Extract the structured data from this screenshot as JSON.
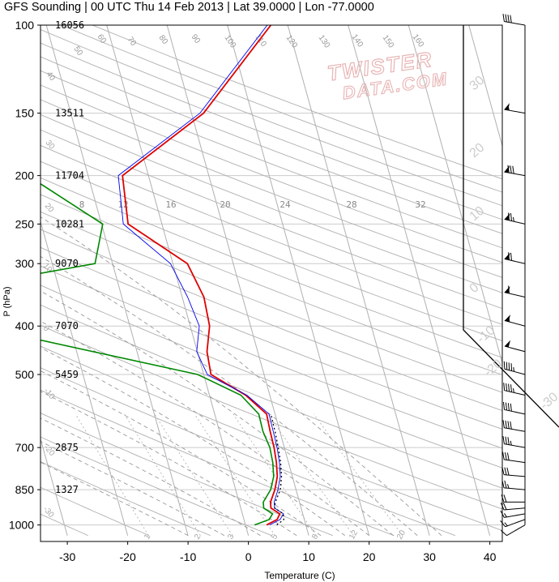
{
  "chart_data": {
    "type": "line",
    "title": "GFS Sounding | 00 UTC Thu 14 Feb 2013 | Lat 39.0000 | Lon -77.0000",
    "xlabel": "Temperature (C)",
    "ylabel": "P (hPa)",
    "skew": true,
    "xlim": [
      -34,
      46
    ],
    "ylim": [
      1050,
      100
    ],
    "x_ticks": [
      -30,
      -20,
      -10,
      0,
      10,
      20,
      30,
      40
    ],
    "y_ticks": [
      100,
      150,
      200,
      250,
      300,
      400,
      500,
      700,
      850,
      1000
    ],
    "heights_m": [
      {
        "p": 100,
        "label": "16056"
      },
      {
        "p": 150,
        "label": "13511"
      },
      {
        "p": 200,
        "label": "11704"
      },
      {
        "p": 250,
        "label": "10281"
      },
      {
        "p": 300,
        "label": "9070"
      },
      {
        "p": 400,
        "label": "7070"
      },
      {
        "p": 500,
        "label": "5459"
      },
      {
        "p": 700,
        "label": "2875"
      },
      {
        "p": 850,
        "label": "1327"
      }
    ],
    "isotherm_labels": [
      "40",
      "50",
      "60",
      "70",
      "80",
      "90",
      "100",
      "110",
      "120",
      "130",
      "140",
      "150",
      "160"
    ],
    "dry_adiabat_labels": [
      "40",
      "30",
      "20",
      "10",
      "0",
      "-10",
      "-20",
      "-30"
    ],
    "mixing_ratio_labels": [
      "1",
      "2",
      "3",
      "5",
      "8",
      "12",
      "20"
    ],
    "wetbulb_labels": [
      "8",
      "12",
      "16",
      "20",
      "24",
      "28",
      "32"
    ],
    "hodo_labels": [
      "-30",
      "-20",
      "-10",
      "0",
      "10",
      "20",
      "30"
    ],
    "series": [
      {
        "role": "temperature",
        "color": "#dd0000",
        "points": [
          [
            1000,
            3.5
          ],
          [
            975,
            5.5
          ],
          [
            950,
            6.2
          ],
          [
            925,
            5.0
          ],
          [
            900,
            5.2
          ],
          [
            850,
            6.5
          ],
          [
            800,
            7.5
          ],
          [
            750,
            8.0
          ],
          [
            700,
            8.3
          ],
          [
            650,
            8.4
          ],
          [
            600,
            8.6
          ],
          [
            550,
            6.0
          ],
          [
            500,
            1.2
          ],
          [
            450,
            1.6
          ],
          [
            400,
            3.2
          ],
          [
            350,
            3.6
          ],
          [
            300,
            2.4
          ],
          [
            250,
            -5.6
          ],
          [
            200,
            -4.3
          ],
          [
            150,
            12.0
          ],
          [
            100,
            27.2
          ]
        ]
      },
      {
        "role": "virtual-temperature",
        "color": "#0000ee",
        "points": [
          [
            1000,
            4.0
          ],
          [
            975,
            6.0
          ],
          [
            950,
            6.8
          ],
          [
            925,
            5.6
          ],
          [
            900,
            5.8
          ],
          [
            850,
            7.0
          ],
          [
            800,
            8.0
          ],
          [
            750,
            8.5
          ],
          [
            700,
            8.8
          ],
          [
            650,
            8.9
          ],
          [
            600,
            9.0
          ],
          [
            550,
            6.2
          ],
          [
            500,
            0.6
          ],
          [
            450,
            -0.1
          ],
          [
            400,
            1.5
          ],
          [
            350,
            0.9
          ],
          [
            300,
            -0.4
          ],
          [
            250,
            -6.4
          ],
          [
            200,
            -5.0
          ],
          [
            150,
            11.4
          ],
          [
            100,
            26.6
          ]
        ]
      },
      {
        "role": "dewpoint",
        "color": "#008800",
        "points": [
          [
            1000,
            1.5
          ],
          [
            975,
            4.2
          ],
          [
            950,
            5.0
          ],
          [
            925,
            3.8
          ],
          [
            900,
            4.0
          ],
          [
            850,
            5.8
          ],
          [
            800,
            6.9
          ],
          [
            750,
            7.4
          ],
          [
            700,
            7.6
          ],
          [
            650,
            7.2
          ],
          [
            600,
            7.3
          ],
          [
            550,
            5.2
          ],
          [
            500,
            -1.0
          ],
          [
            400,
            -35.5
          ],
          [
            350,
            -45.5
          ],
          [
            300,
            -12.9
          ],
          [
            250,
            -9.8
          ],
          [
            200,
            -20.0
          ],
          [
            150,
            -15.3
          ],
          [
            100,
            -15.0
          ]
        ]
      },
      {
        "role": "parcel",
        "color": "#000000",
        "points": [
          [
            1000,
            5.2
          ],
          [
            975,
            6.6
          ],
          [
            950,
            6.8
          ],
          [
            925,
            5.6
          ],
          [
            900,
            6.0
          ],
          [
            850,
            7.4
          ],
          [
            800,
            8.2
          ],
          [
            750,
            8.7
          ],
          [
            700,
            9.0
          ],
          [
            650,
            9.2
          ],
          [
            600,
            9.3
          ]
        ]
      }
    ],
    "wind_barbs": [
      {
        "p": 1000,
        "dir": 240,
        "speed": 10
      },
      {
        "p": 975,
        "dir": 250,
        "speed": 15
      },
      {
        "p": 950,
        "dir": 260,
        "speed": 15
      },
      {
        "p": 925,
        "dir": 265,
        "speed": 20
      },
      {
        "p": 900,
        "dir": 270,
        "speed": 20
      },
      {
        "p": 850,
        "dir": 275,
        "speed": 25
      },
      {
        "p": 800,
        "dir": 275,
        "speed": 30
      },
      {
        "p": 750,
        "dir": 278,
        "speed": 30
      },
      {
        "p": 700,
        "dir": 280,
        "speed": 35
      },
      {
        "p": 650,
        "dir": 280,
        "speed": 40
      },
      {
        "p": 600,
        "dir": 282,
        "speed": 40
      },
      {
        "p": 550,
        "dir": 283,
        "speed": 45
      },
      {
        "p": 500,
        "dir": 285,
        "speed": 45
      },
      {
        "p": 450,
        "dir": 285,
        "speed": 50
      },
      {
        "p": 400,
        "dir": 285,
        "speed": 55
      },
      {
        "p": 350,
        "dir": 283,
        "speed": 60
      },
      {
        "p": 300,
        "dir": 283,
        "speed": 70
      },
      {
        "p": 250,
        "dir": 283,
        "speed": 75
      },
      {
        "p": 200,
        "dir": 280,
        "speed": 80
      },
      {
        "p": 150,
        "dir": 280,
        "speed": 55
      },
      {
        "p": 100,
        "dir": 280,
        "speed": 40
      }
    ],
    "watermark": {
      "line1": "TWISTER",
      "line2": "DATA.COM",
      "color": "#e8b4b4"
    },
    "colors": {
      "grid": "#b0b0b0",
      "isobar": "#cccccc",
      "axis": "#000000"
    }
  }
}
